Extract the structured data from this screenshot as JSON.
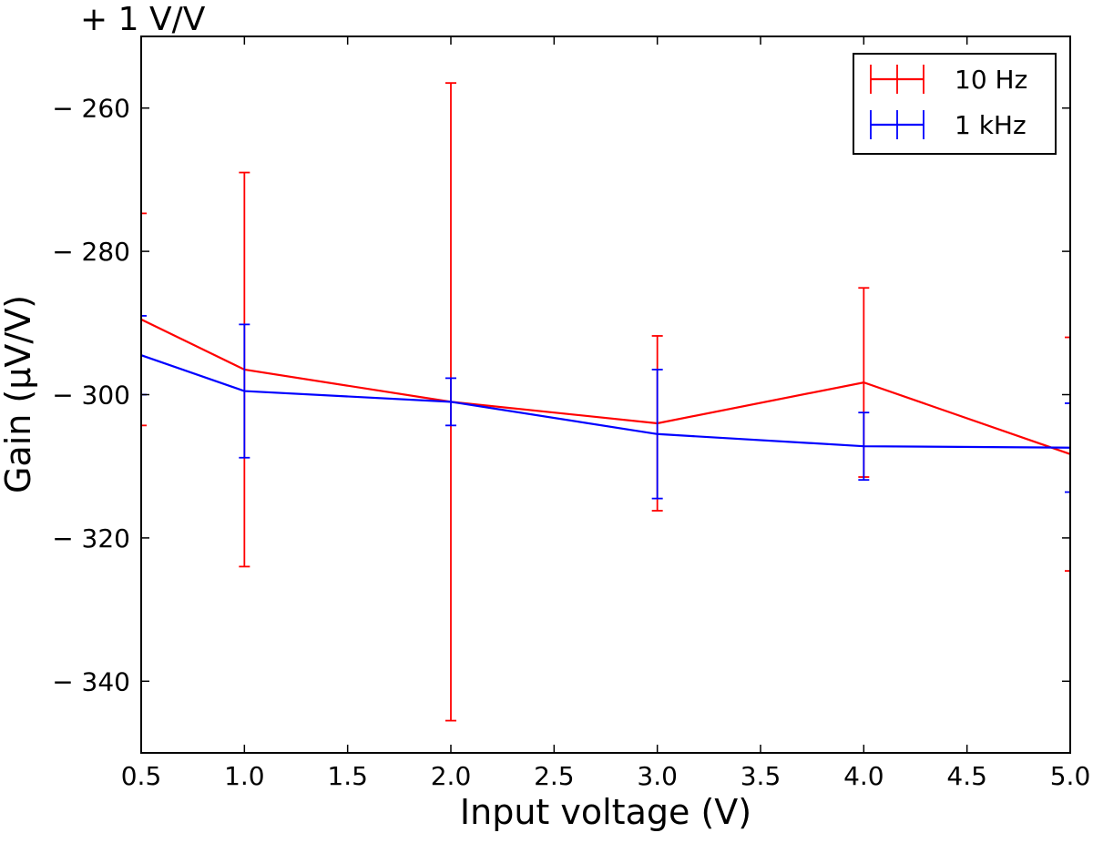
{
  "chart_data": {
    "type": "line",
    "offset_text": "+ 1 V/V",
    "xlabel": "Input voltage (V)",
    "ylabel": "Gain (µV/V)",
    "xlim": [
      0.5,
      5.0
    ],
    "ylim": [
      -350,
      -250
    ],
    "xticks": [
      0.5,
      1.0,
      1.5,
      2.0,
      2.5,
      3.0,
      3.5,
      4.0,
      4.5,
      5.0
    ],
    "xtick_labels": [
      "0.5",
      "1.0",
      "1.5",
      "2.0",
      "2.5",
      "3.0",
      "3.5",
      "4.0",
      "4.5",
      "5.0"
    ],
    "yticks": [
      -340,
      -320,
      -300,
      -280,
      -260
    ],
    "ytick_labels": [
      "− 340",
      "− 320",
      "− 300",
      "− 280",
      "− 260"
    ],
    "grid": false,
    "legend_position": "top-right",
    "series": [
      {
        "name": "10 Hz",
        "color": "#ff0000",
        "x": [
          0.5,
          1.0,
          2.0,
          3.0,
          4.0,
          5.0
        ],
        "y": [
          -289.5,
          -296.5,
          -301.0,
          -304.0,
          -298.3,
          -308.3
        ],
        "err": [
          14.8,
          27.5,
          44.5,
          12.2,
          13.2,
          16.3
        ]
      },
      {
        "name": "1 kHz",
        "color": "#0000ff",
        "x": [
          0.5,
          1.0,
          2.0,
          3.0,
          4.0,
          5.0
        ],
        "y": [
          -294.5,
          -299.5,
          -301.0,
          -305.5,
          -307.2,
          -307.4
        ],
        "err": [
          5.5,
          9.3,
          3.3,
          9.0,
          4.7,
          6.2
        ]
      }
    ]
  }
}
